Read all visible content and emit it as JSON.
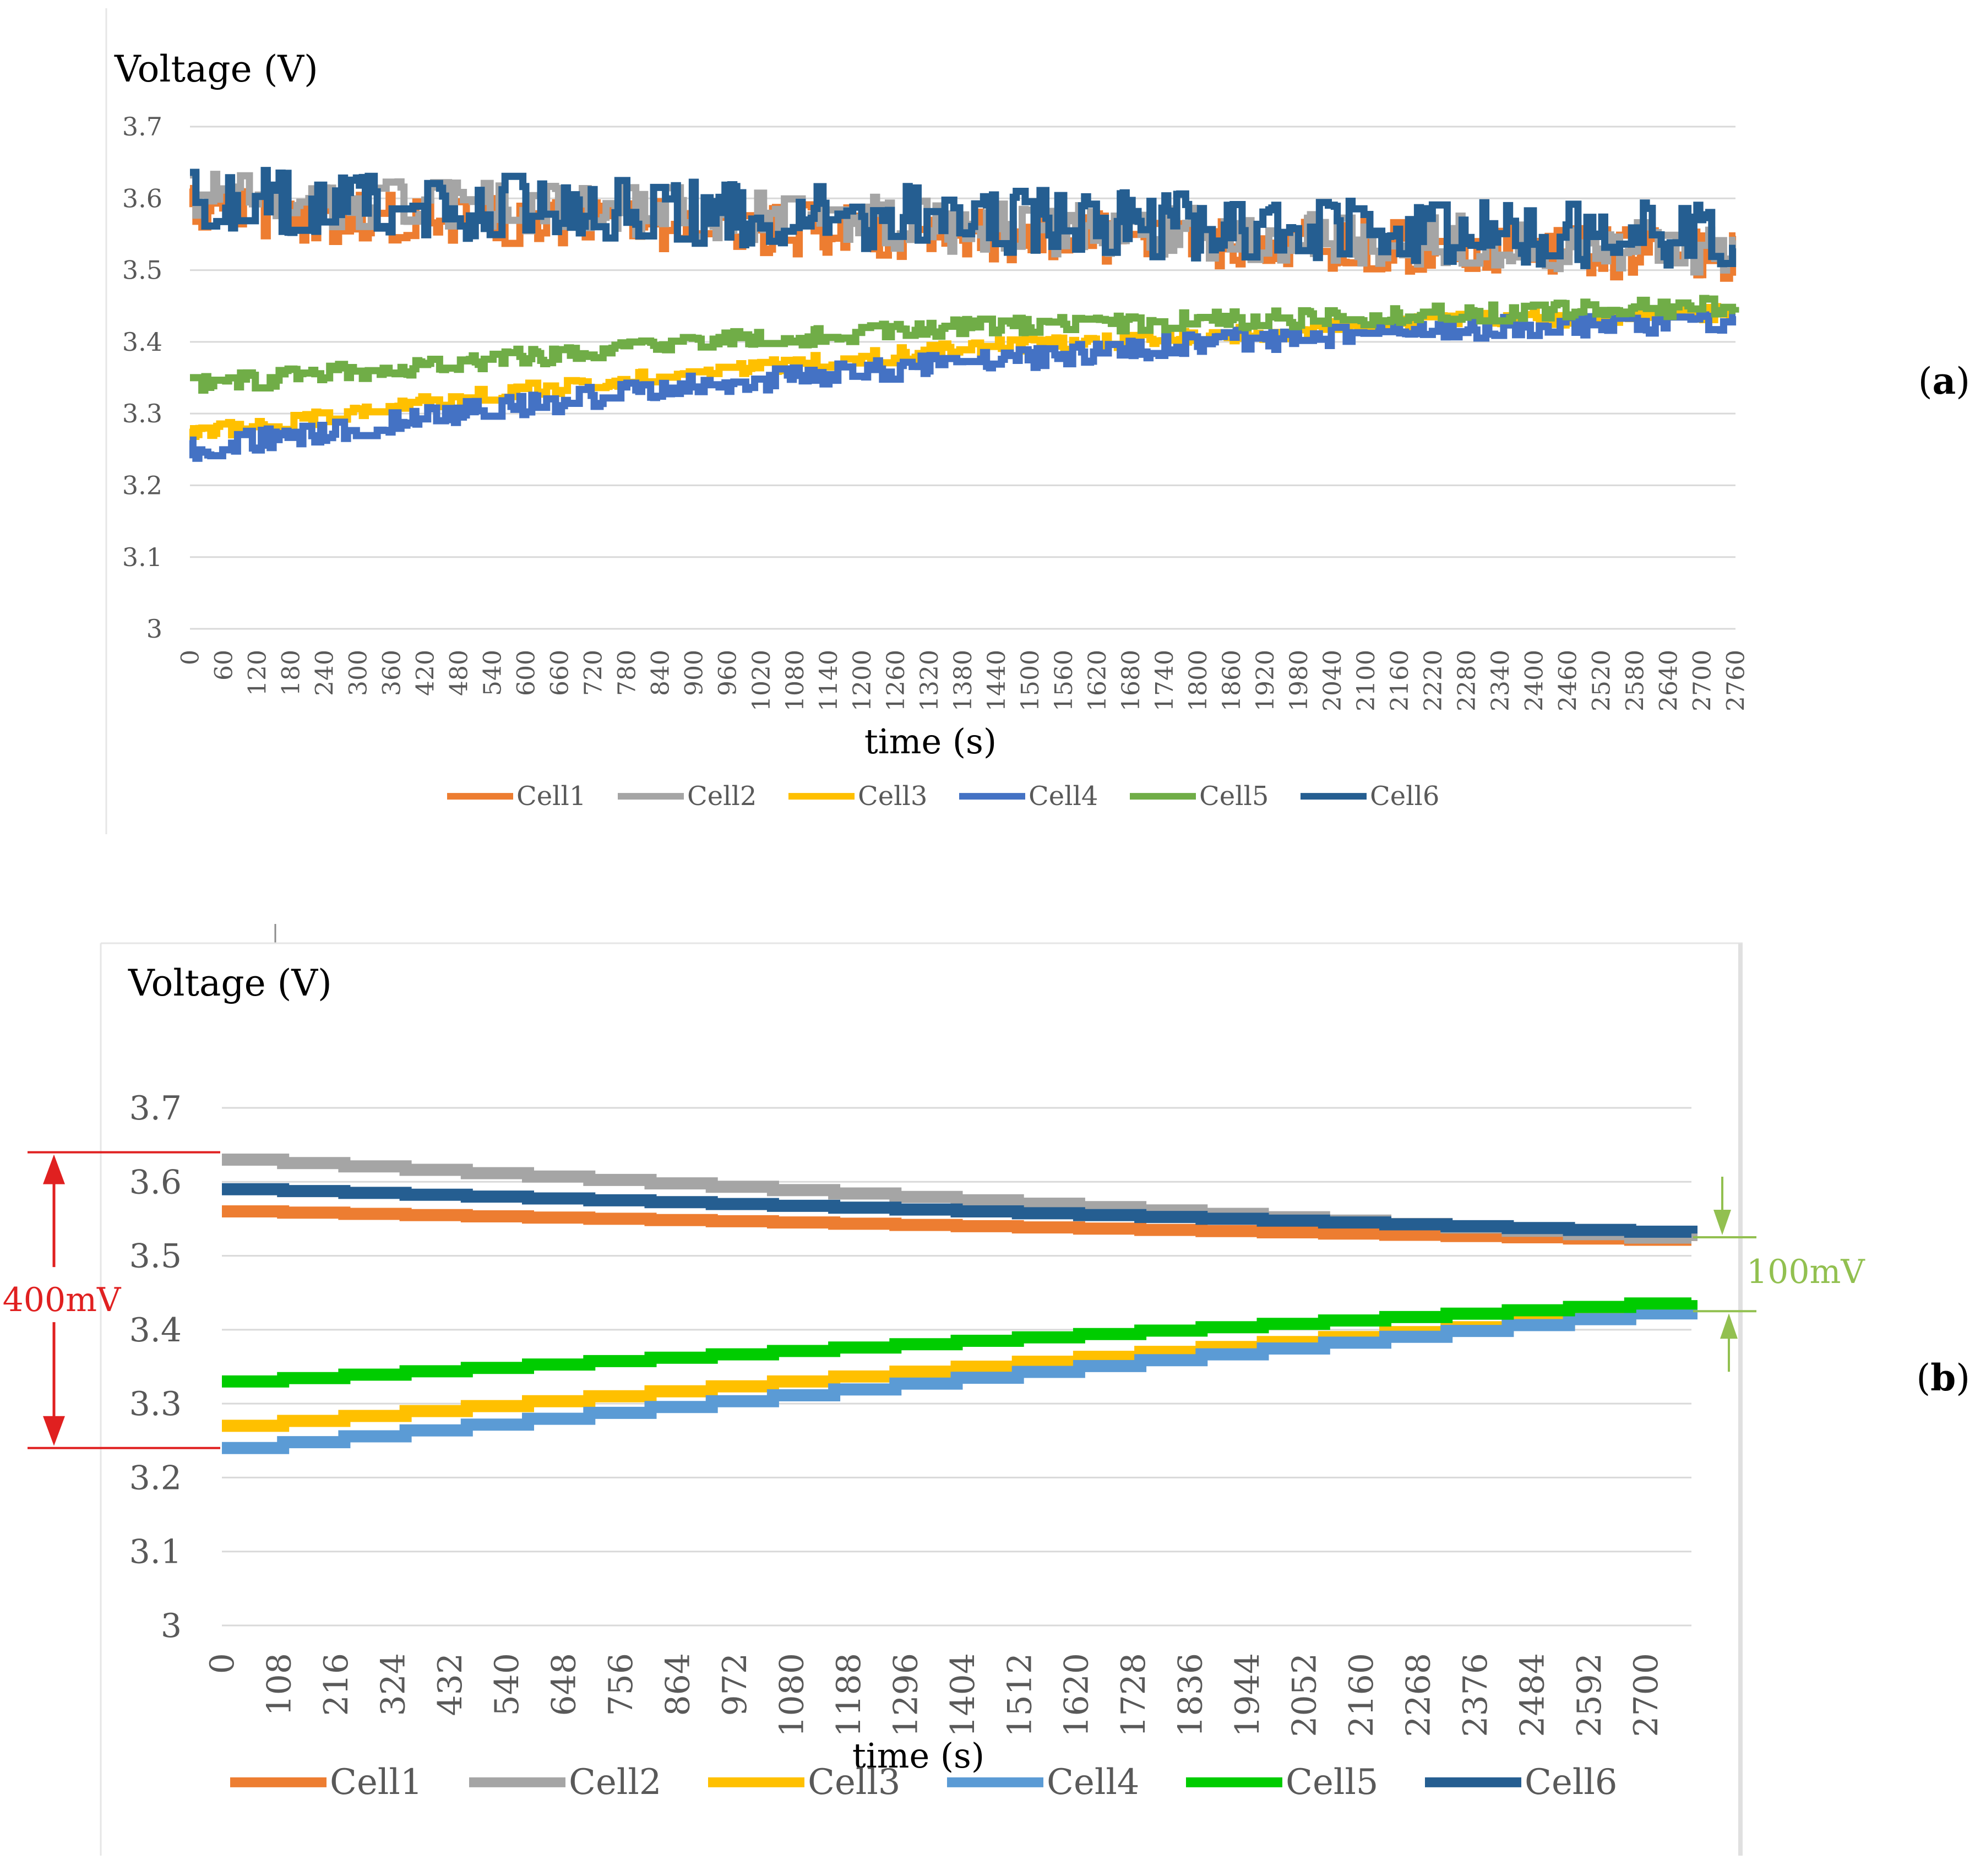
{
  "colors": {
    "cell1": "#ED7D31",
    "cell2": "#A5A5A5",
    "cell3": "#FFC000",
    "cell4_a": "#4472C4",
    "cell4_b": "#5B9BD5",
    "cell5_a": "#70AD47",
    "cell5_b": "#00CC00",
    "cell6": "#255E91",
    "annotation_red": "#E02020",
    "annotation_green": "#92C050",
    "grid": "#D9D9D9"
  },
  "chart_data": [
    {
      "type": "line",
      "panel_label": "a",
      "title": "",
      "ylabel": "Voltage (V)",
      "xlabel": "time (s)",
      "ylim": [
        3.0,
        3.7
      ],
      "xlim": [
        0,
        2760
      ],
      "y_ticks": [
        "3",
        "3.1",
        "3.2",
        "3.3",
        "3.4",
        "3.5",
        "3.6",
        "3.7"
      ],
      "x_ticks": [
        "0",
        "60",
        "120",
        "180",
        "240",
        "300",
        "360",
        "420",
        "480",
        "540",
        "600",
        "660",
        "720",
        "780",
        "840",
        "900",
        "960",
        "1020",
        "1080",
        "1140",
        "1200",
        "1260",
        "1320",
        "1380",
        "1440",
        "1500",
        "1560",
        "1620",
        "1680",
        "1740",
        "1800",
        "1860",
        "1920",
        "1980",
        "2040",
        "2100",
        "2160",
        "2220",
        "2280",
        "2340",
        "2400",
        "2460",
        "2520",
        "2580",
        "2640",
        "2700",
        "2760"
      ],
      "grid": true,
      "legend_position": "bottom",
      "series": [
        {
          "name": "Cell1",
          "x": [
            0,
            460,
            920,
            1380,
            1840,
            2300,
            2760
          ],
          "y": [
            3.58,
            3.57,
            3.56,
            3.55,
            3.54,
            3.53,
            3.52
          ],
          "noise": 0.035
        },
        {
          "name": "Cell2",
          "x": [
            0,
            460,
            920,
            1380,
            1840,
            2300,
            2760
          ],
          "y": [
            3.6,
            3.59,
            3.58,
            3.56,
            3.55,
            3.54,
            3.53
          ],
          "noise": 0.035
        },
        {
          "name": "Cell3",
          "x": [
            0,
            460,
            920,
            1380,
            1840,
            2300,
            2760
          ],
          "y": [
            3.27,
            3.32,
            3.36,
            3.39,
            3.41,
            3.43,
            3.44
          ],
          "noise": 0.01
        },
        {
          "name": "Cell4",
          "x": [
            0,
            460,
            920,
            1380,
            1840,
            2300,
            2760
          ],
          "y": [
            3.25,
            3.3,
            3.34,
            3.37,
            3.4,
            3.42,
            3.43
          ],
          "noise": 0.015
        },
        {
          "name": "Cell5",
          "x": [
            0,
            460,
            920,
            1380,
            1840,
            2300,
            2760
          ],
          "y": [
            3.34,
            3.37,
            3.4,
            3.42,
            3.43,
            3.44,
            3.45
          ],
          "noise": 0.012
        },
        {
          "name": "Cell6",
          "x": [
            0,
            460,
            920,
            1380,
            1840,
            2300,
            2760
          ],
          "y": [
            3.6,
            3.59,
            3.58,
            3.57,
            3.56,
            3.55,
            3.55
          ],
          "noise": 0.045
        }
      ]
    },
    {
      "type": "line",
      "panel_label": "b",
      "title": "",
      "ylabel": "Voltage (V)",
      "xlabel": "time (s)",
      "ylim": [
        3.0,
        3.7
      ],
      "xlim": [
        0,
        2760
      ],
      "y_ticks": [
        "3",
        "3.1",
        "3.2",
        "3.3",
        "3.4",
        "3.5",
        "3.6",
        "3.7"
      ],
      "x_ticks": [
        "0",
        "108",
        "216",
        "324",
        "432",
        "540",
        "648",
        "756",
        "864",
        "972",
        "1080",
        "1188",
        "1296",
        "1404",
        "1512",
        "1620",
        "1728",
        "1836",
        "1944",
        "2052",
        "2160",
        "2268",
        "2376",
        "2484",
        "2592",
        "2700"
      ],
      "grid": true,
      "legend_position": "bottom",
      "annotations": [
        {
          "text": "400mV",
          "from_y": 3.64,
          "to_y": 3.24,
          "side": "left"
        },
        {
          "text": "100mV",
          "from_y": 3.525,
          "to_y": 3.425,
          "side": "right"
        }
      ],
      "series": [
        {
          "name": "Cell1",
          "x": [
            0,
            2760
          ],
          "y": [
            3.56,
            3.52
          ]
        },
        {
          "name": "Cell2",
          "x": [
            0,
            2760
          ],
          "y": [
            3.63,
            3.52
          ]
        },
        {
          "name": "Cell3",
          "x": [
            0,
            2760
          ],
          "y": [
            3.27,
            3.43
          ]
        },
        {
          "name": "Cell4",
          "x": [
            0,
            2760
          ],
          "y": [
            3.24,
            3.43
          ]
        },
        {
          "name": "Cell5",
          "x": [
            0,
            2760
          ],
          "y": [
            3.33,
            3.44
          ]
        },
        {
          "name": "Cell6",
          "x": [
            0,
            2760
          ],
          "y": [
            3.59,
            3.53
          ]
        }
      ]
    }
  ],
  "labels": {
    "panel_a": "(a)",
    "panel_b": "(b)"
  }
}
